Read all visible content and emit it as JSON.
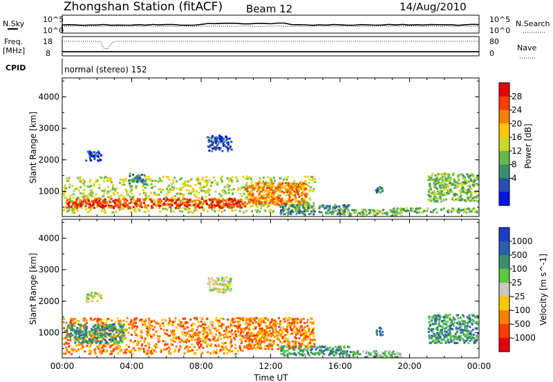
{
  "header": {
    "station": "Zhongshan Station (fitACF)",
    "beam": "Beam 12",
    "date": "14/Aug/2010"
  },
  "top_panels": {
    "nsky_label": "N.Sky",
    "nsky_ticks": [
      "10^5",
      "10^0"
    ],
    "nsearch_label": "N.Search",
    "nsearch_ticks": [
      "10^5",
      "10^0"
    ],
    "freq_label_1": "Freq.",
    "freq_label_2": "[MHz]",
    "freq_ticks": [
      "18",
      "8"
    ],
    "nave_label": "Nave",
    "nave_ticks": [
      "80",
      "0"
    ],
    "cpid_label": "CPID",
    "cpid_text": "normal (stereo) 152"
  },
  "chart_data": [
    {
      "type": "heatmap",
      "name": "power",
      "ylabel": "Slant Range [km]",
      "xlabel": "",
      "ylim": [
        200,
        4600
      ],
      "xlim": [
        0,
        24
      ],
      "x_ticks": [
        "00:00",
        "04:00",
        "08:00",
        "12:00",
        "16:00",
        "20:00",
        "00:00"
      ],
      "y_ticks": [
        "1000",
        "2000",
        "3000",
        "4000"
      ],
      "colorbar": {
        "label": "Power [dB]",
        "ticks": [
          "28",
          "24",
          "20",
          "16",
          "12",
          "8",
          "4"
        ],
        "colors": [
          "#e8000b",
          "#ff3c00",
          "#ff8000",
          "#ffc800",
          "#c8d82c",
          "#66b84c",
          "#3b8f6e",
          "#2a4fb0",
          "#0a14e0"
        ]
      },
      "clusters": [
        {
          "t0": 0.0,
          "t1": 14.5,
          "r0": 350,
          "r1": 1500,
          "v": 16
        },
        {
          "t0": 0.2,
          "t1": 10.5,
          "r0": 500,
          "r1": 800,
          "v": 26
        },
        {
          "t0": 10.5,
          "t1": 14.0,
          "r0": 600,
          "r1": 1300,
          "v": 22
        },
        {
          "t0": 12.5,
          "t1": 16.5,
          "r0": 300,
          "r1": 600,
          "v": 8
        },
        {
          "t0": 16.0,
          "t1": 19.5,
          "r0": 250,
          "r1": 450,
          "v": 12
        },
        {
          "t0": 19.0,
          "t1": 23.9,
          "r0": 350,
          "r1": 500,
          "v": 14
        },
        {
          "t0": 21.0,
          "t1": 23.9,
          "r0": 700,
          "r1": 1600,
          "v": 12
        },
        {
          "t0": 1.3,
          "t1": 2.2,
          "r0": 2000,
          "r1": 2300,
          "v": 6
        },
        {
          "t0": 8.3,
          "t1": 9.7,
          "r0": 2300,
          "r1": 2800,
          "v": 6
        },
        {
          "t0": 3.8,
          "t1": 4.8,
          "r0": 1250,
          "r1": 1600,
          "v": 8
        },
        {
          "t0": 18.0,
          "t1": 18.4,
          "r0": 900,
          "r1": 1200,
          "v": 8
        }
      ]
    },
    {
      "type": "heatmap",
      "name": "velocity",
      "ylabel": "Slant Range [km]",
      "xlabel": "Time UT",
      "ylim": [
        200,
        4600
      ],
      "xlim": [
        0,
        24
      ],
      "x_ticks": [
        "00:00",
        "04:00",
        "08:00",
        "12:00",
        "16:00",
        "20:00",
        "00:00"
      ],
      "y_ticks": [
        "1000",
        "2000",
        "3000",
        "4000"
      ],
      "colorbar": {
        "label": "Velocity [m s^-1]",
        "ticks": [
          "1000",
          "500",
          "100",
          "25",
          "-25",
          "-100",
          "-500",
          "-1000"
        ],
        "colors": [
          "#1e3cc8",
          "#2a5fb0",
          "#3b8f6e",
          "#5cc83c",
          "#c8c8c0",
          "#ffc800",
          "#ff8000",
          "#ff3c00",
          "#e8000b"
        ]
      },
      "clusters": [
        {
          "t0": 0.0,
          "t1": 10.5,
          "r0": 350,
          "r1": 1500,
          "v": -200
        },
        {
          "t0": 0.2,
          "t1": 3.5,
          "r0": 700,
          "r1": 1300,
          "v": 400
        },
        {
          "t0": 10.5,
          "t1": 14.5,
          "r0": 500,
          "r1": 1500,
          "v": -300
        },
        {
          "t0": 12.5,
          "t1": 16.5,
          "r0": 300,
          "r1": 600,
          "v": 150
        },
        {
          "t0": 16.0,
          "t1": 19.5,
          "r0": 250,
          "r1": 450,
          "v": 50
        },
        {
          "t0": 21.0,
          "t1": 23.9,
          "r0": 700,
          "r1": 1600,
          "v": 400
        },
        {
          "t0": 1.3,
          "t1": 2.2,
          "r0": 2000,
          "r1": 2300,
          "v": 0
        },
        {
          "t0": 8.3,
          "t1": 9.7,
          "r0": 2300,
          "r1": 2800,
          "v": 0
        },
        {
          "t0": 18.0,
          "t1": 18.4,
          "r0": 900,
          "r1": 1200,
          "v": 200
        }
      ]
    }
  ]
}
